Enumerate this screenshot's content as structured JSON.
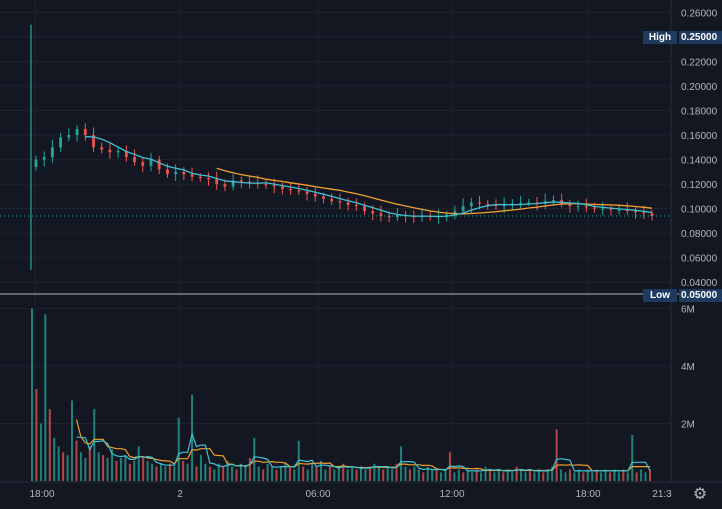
{
  "chart_data": {
    "type": "candlestick",
    "price_axis": {
      "ticks": [
        "0.26000",
        "0.24000",
        "0.22000",
        "0.20000",
        "0.18000",
        "0.16000",
        "0.14000",
        "0.12000",
        "0.10000",
        "0.08000",
        "0.06000",
        "0.04000"
      ],
      "range": [
        0.032,
        0.262
      ]
    },
    "volume_axis": {
      "ticks": [
        "6M",
        "4M",
        "2M"
      ],
      "range": [
        0,
        6400000
      ]
    },
    "time_axis": {
      "ticks": [
        "18:00",
        "2",
        "06:00",
        "12:00",
        "18:00",
        "21:3"
      ]
    },
    "high_marker": {
      "label": "High",
      "value": "0.25000"
    },
    "low_marker": {
      "label": "Low",
      "value": "0.05000"
    },
    "last_price": 0.094,
    "ma_colors": {
      "fast": "#3ec2d4",
      "slow": "#f0a030"
    },
    "candle_colors": {
      "up": "#26a69a",
      "down": "#ef5350"
    },
    "price_series": [
      [
        0,
        0.14
      ],
      [
        2,
        0.142
      ],
      [
        4,
        0.15
      ],
      [
        6,
        0.158
      ],
      [
        8,
        0.16
      ],
      [
        10,
        0.165
      ],
      [
        12,
        0.16
      ],
      [
        14,
        0.15
      ],
      [
        16,
        0.148
      ],
      [
        18,
        0.146
      ],
      [
        20,
        0.147
      ],
      [
        22,
        0.142
      ],
      [
        24,
        0.138
      ],
      [
        26,
        0.135
      ],
      [
        28,
        0.14
      ],
      [
        30,
        0.132
      ],
      [
        32,
        0.128
      ],
      [
        34,
        0.13
      ],
      [
        36,
        0.128
      ],
      [
        38,
        0.126
      ],
      [
        40,
        0.125
      ],
      [
        42,
        0.124
      ],
      [
        44,
        0.12
      ],
      [
        46,
        0.118
      ],
      [
        48,
        0.123
      ],
      [
        50,
        0.122
      ],
      [
        52,
        0.121
      ],
      [
        54,
        0.12
      ],
      [
        56,
        0.119
      ],
      [
        58,
        0.118
      ],
      [
        60,
        0.116
      ],
      [
        62,
        0.115
      ],
      [
        64,
        0.114
      ],
      [
        66,
        0.112
      ],
      [
        68,
        0.11
      ],
      [
        70,
        0.108
      ],
      [
        72,
        0.106
      ],
      [
        74,
        0.105
      ],
      [
        76,
        0.103
      ],
      [
        78,
        0.102
      ],
      [
        80,
        0.098
      ],
      [
        82,
        0.096
      ],
      [
        84,
        0.094
      ],
      [
        86,
        0.093
      ],
      [
        88,
        0.095
      ],
      [
        90,
        0.094
      ],
      [
        92,
        0.093
      ],
      [
        94,
        0.094
      ],
      [
        96,
        0.093
      ],
      [
        98,
        0.094
      ],
      [
        100,
        0.095
      ],
      [
        102,
        0.098
      ],
      [
        104,
        0.102
      ],
      [
        106,
        0.105
      ],
      [
        108,
        0.104
      ],
      [
        110,
        0.103
      ],
      [
        112,
        0.102
      ],
      [
        114,
        0.103
      ],
      [
        116,
        0.104
      ],
      [
        118,
        0.105
      ],
      [
        120,
        0.105
      ],
      [
        122,
        0.104
      ],
      [
        124,
        0.106
      ],
      [
        126,
        0.107
      ],
      [
        128,
        0.104
      ],
      [
        130,
        0.102
      ],
      [
        132,
        0.102
      ],
      [
        134,
        0.101
      ],
      [
        136,
        0.1
      ],
      [
        138,
        0.1
      ],
      [
        140,
        0.099
      ],
      [
        142,
        0.099
      ],
      [
        144,
        0.098
      ],
      [
        146,
        0.097
      ],
      [
        148,
        0.096
      ],
      [
        150,
        0.094
      ]
    ],
    "volume_series": [
      6.0,
      3.2,
      2.0,
      5.8,
      2.5,
      1.5,
      1.2,
      1.0,
      0.9,
      2.8,
      1.4,
      1.0,
      0.8,
      1.2,
      2.5,
      1.0,
      0.9,
      0.8,
      1.1,
      0.7,
      0.8,
      0.9,
      0.6,
      0.7,
      1.2,
      0.8,
      0.7,
      0.6,
      0.5,
      0.6,
      0.5,
      0.6,
      0.5,
      2.2,
      0.7,
      0.6,
      3.0,
      0.5,
      0.9,
      0.6,
      0.5,
      0.4,
      0.6,
      0.5,
      0.7,
      0.5,
      0.4,
      0.6,
      0.5,
      0.8,
      1.5,
      0.5,
      0.4,
      0.6,
      0.5,
      0.4,
      0.5,
      0.6,
      0.5,
      0.4,
      1.4,
      0.5,
      0.4,
      0.6,
      0.5,
      0.7,
      0.4,
      0.5,
      0.4,
      0.5,
      0.6,
      0.4,
      0.5,
      0.4,
      0.5,
      0.4,
      0.5,
      0.6,
      0.5,
      0.4,
      0.5,
      0.4,
      0.6,
      1.2,
      0.5,
      0.4,
      0.5,
      0.4,
      0.3,
      0.5,
      0.4,
      0.4,
      0.3,
      0.4,
      1.0,
      0.3,
      0.4,
      0.3,
      0.4,
      0.3,
      0.4,
      0.3,
      0.5,
      0.4,
      0.3,
      0.4,
      0.3,
      0.4,
      0.3,
      0.5,
      0.4,
      0.3,
      0.4,
      0.3,
      0.4,
      0.3,
      0.4,
      0.5,
      1.8,
      0.4,
      0.3,
      0.4,
      0.3,
      0.4,
      0.3,
      0.4,
      0.3,
      0.4,
      0.3,
      0.4,
      0.3,
      0.4,
      0.3,
      0.4,
      0.3,
      1.6,
      0.3,
      0.4,
      0.3,
      0.4
    ]
  }
}
